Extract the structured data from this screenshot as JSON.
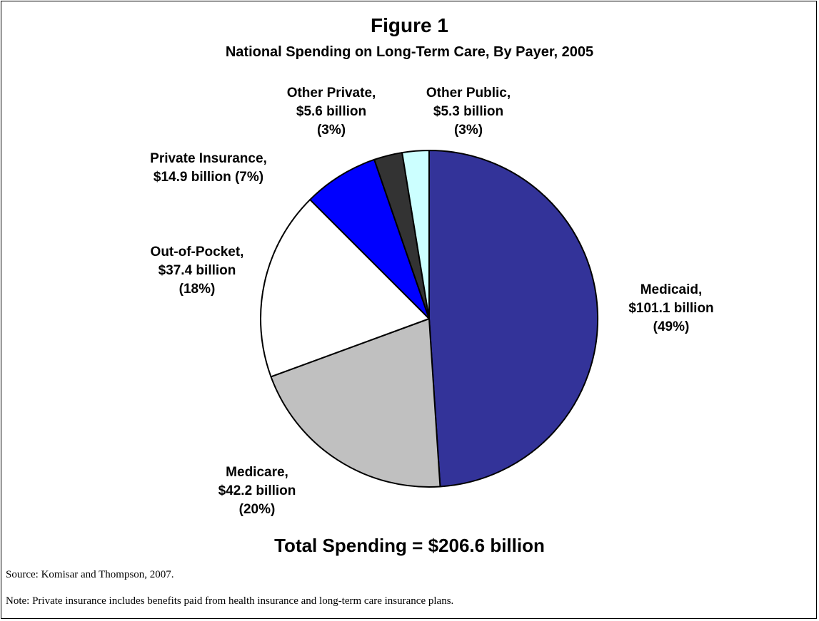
{
  "chart_data": {
    "type": "pie",
    "title": "Figure 1",
    "subtitle": "National Spending on Long-Term Care, By Payer, 2005",
    "slices": [
      {
        "name": "Medicaid",
        "value": 101.1,
        "percent": "49%",
        "color": "#333399",
        "label_lines": [
          "Medicaid,",
          "$101.1 billion",
          "(49%)"
        ]
      },
      {
        "name": "Medicare",
        "value": 42.2,
        "percent": "20%",
        "color": "#C0C0C0",
        "label_lines": [
          "Medicare,",
          "$42.2 billion",
          "(20%)"
        ]
      },
      {
        "name": "Out-of-Pocket",
        "value": 37.4,
        "percent": "18%",
        "color": "#FFFFFF",
        "label_lines": [
          "Out-of-Pocket,",
          "$37.4 billion",
          "(18%)"
        ]
      },
      {
        "name": "Private Insurance",
        "value": 14.9,
        "percent": "7%",
        "color": "#0000FF",
        "label_lines": [
          "Private Insurance,",
          "$14.9 billion (7%)"
        ]
      },
      {
        "name": "Other Private",
        "value": 5.6,
        "percent": "3%",
        "color": "#333333",
        "label_lines": [
          "Other Private,",
          "$5.6 billion",
          "(3%)"
        ]
      },
      {
        "name": "Other Public",
        "value": 5.3,
        "percent": "3%",
        "color": "#CCFFFF",
        "label_lines": [
          "Other Public,",
          "$5.3 billion",
          "(3%)"
        ]
      }
    ],
    "total_label": "Total Spending = $206.6 billion",
    "units": "billion"
  },
  "footnotes": {
    "source": "Source: Komisar and Thompson, 2007.",
    "note": "Note: Private insurance includes benefits paid from health insurance and long-term care insurance plans."
  }
}
